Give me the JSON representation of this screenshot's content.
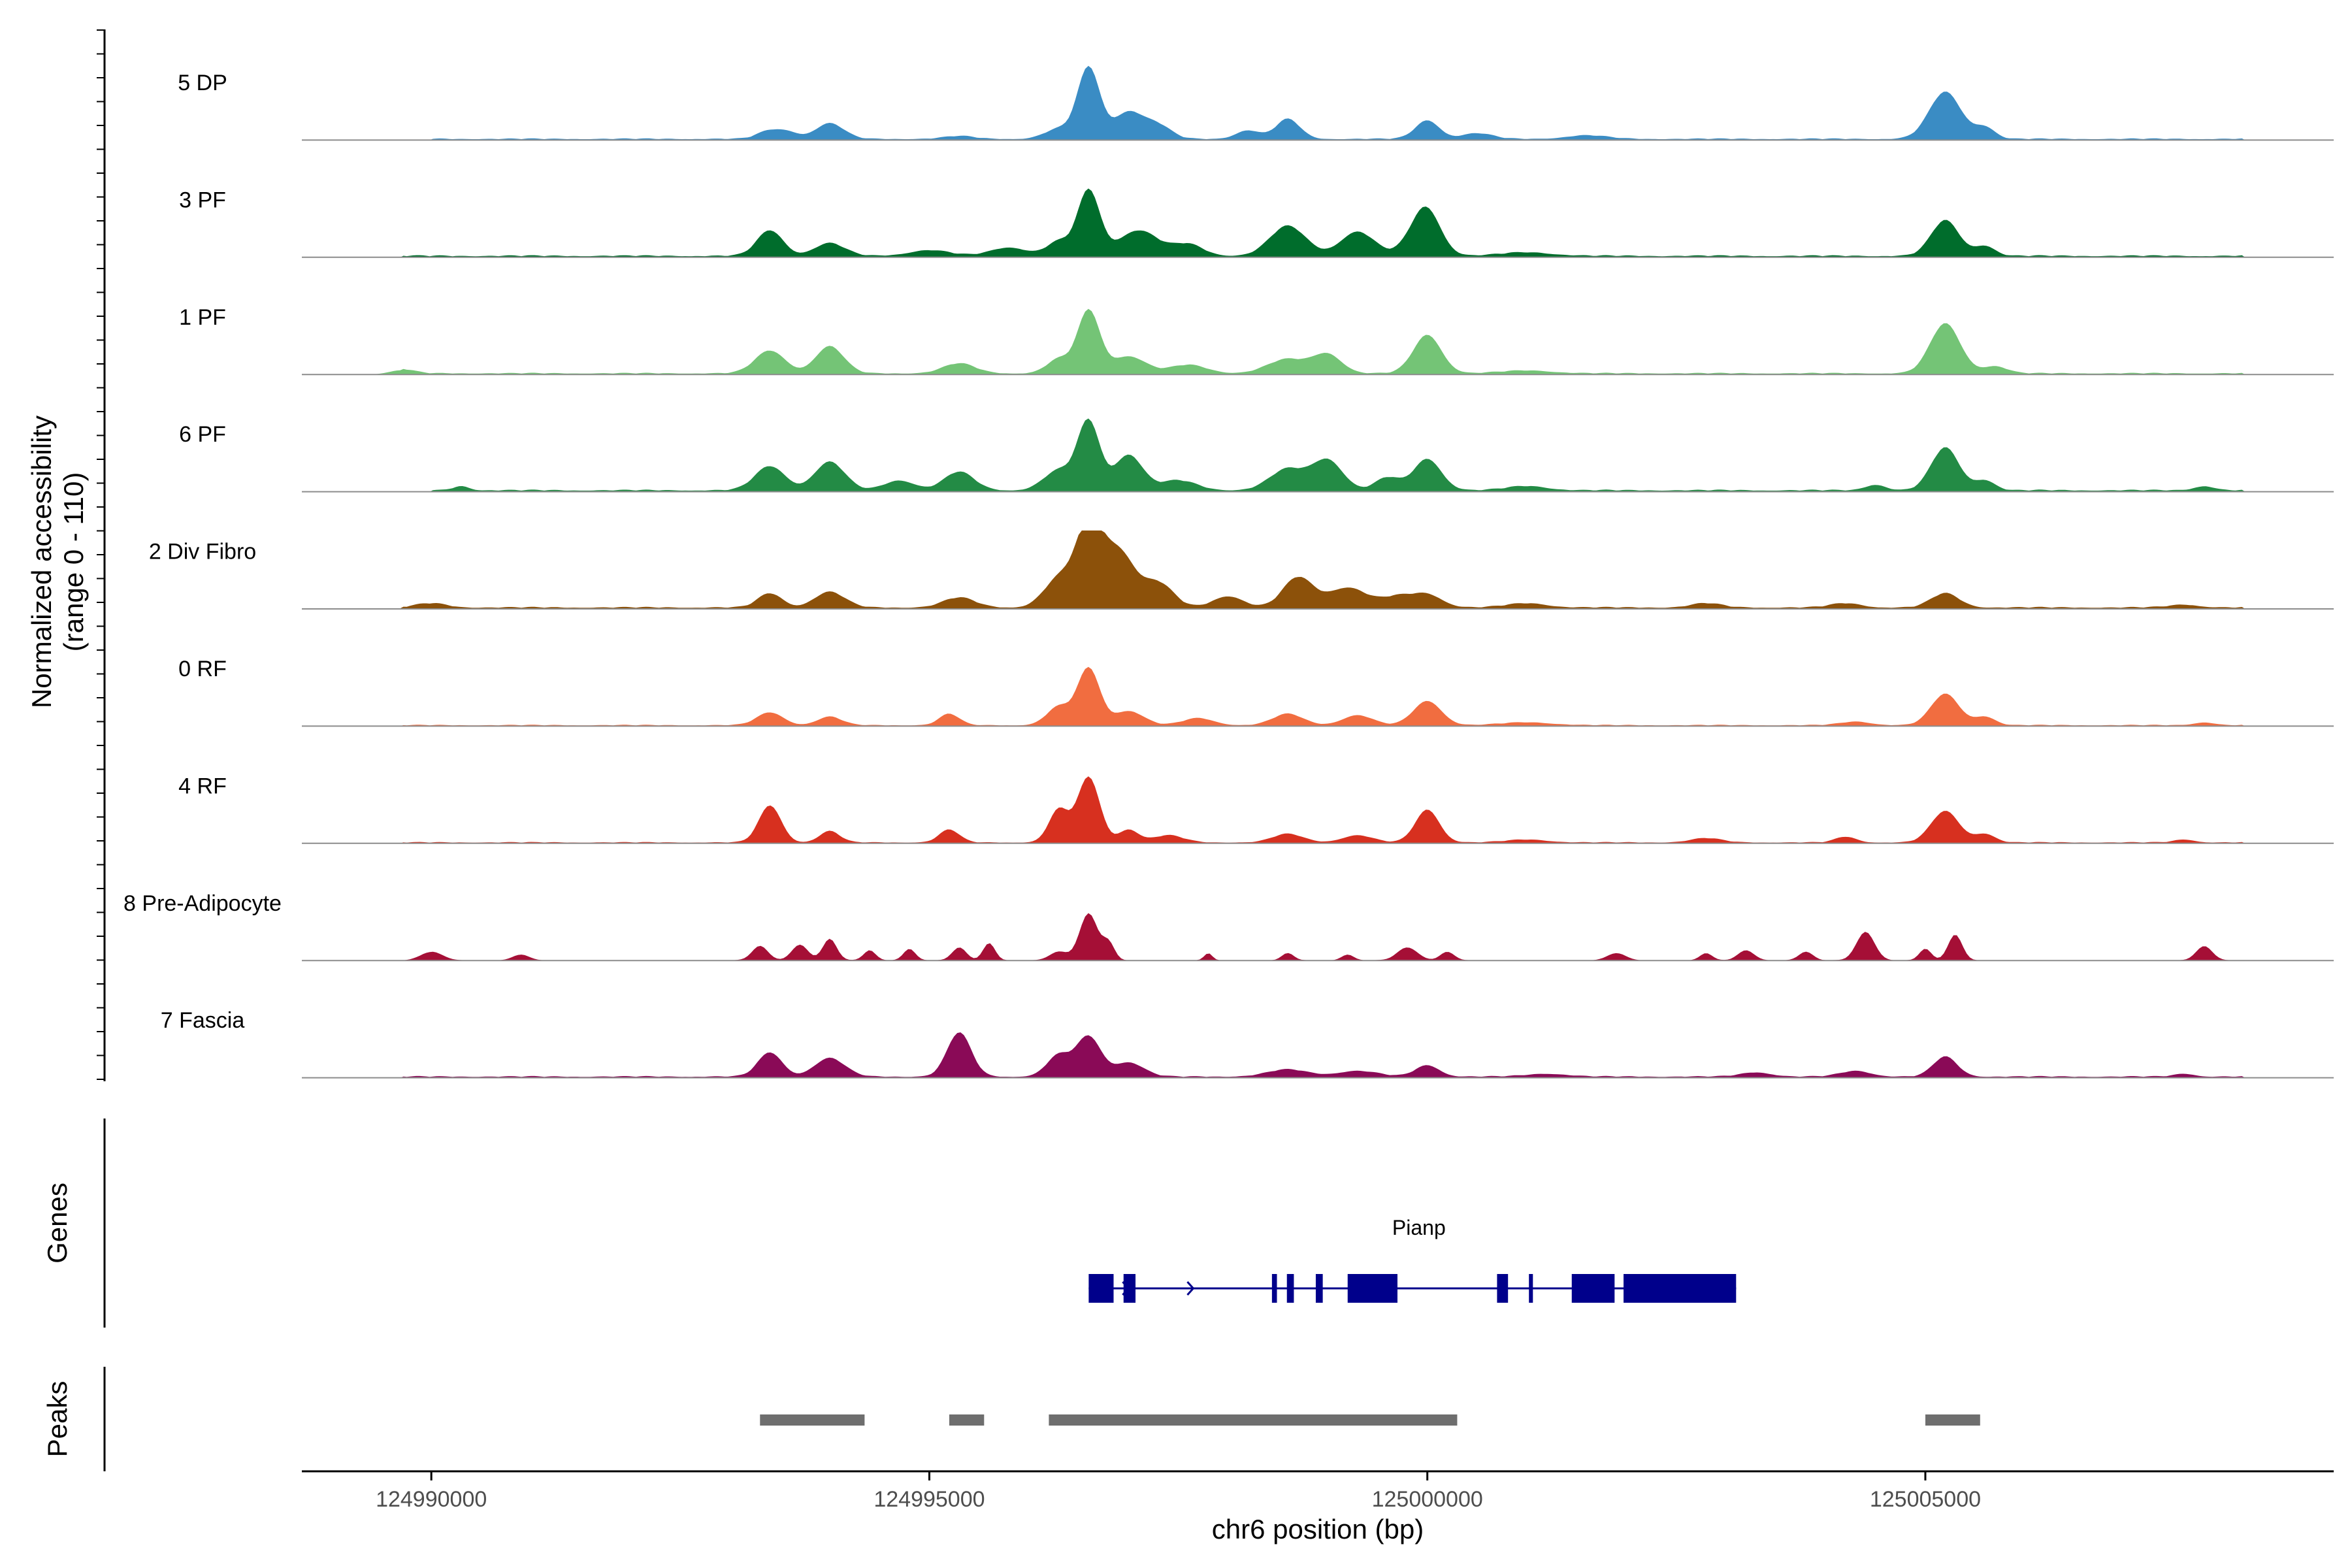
{
  "chart_data": {
    "type": "area",
    "title": "",
    "xlabel": "chr6 position (bp)",
    "ylabel": "Normalized accessibility\n(range 0 - 110)",
    "ylabel_line1": "Normalized accessibility",
    "ylabel_line2": "(range 0 - 110)",
    "xlim": [
      124988700,
      125009100
    ],
    "ylim": [
      0,
      110
    ],
    "x_ticks": [
      124990000,
      124995000,
      125000000,
      125005000
    ],
    "x_tick_labels": [
      "124990000",
      "124995000",
      "125000000",
      "125005000"
    ],
    "series": [
      {
        "name": "5 DP",
        "color": "#3A8CC4",
        "peaks": [
          [
            124993400,
            12,
            120
          ],
          [
            124993600,
            8,
            100
          ],
          [
            124994000,
            22,
            140
          ],
          [
            124995300,
            4,
            150
          ],
          [
            124996300,
            14,
            140
          ],
          [
            124996600,
            100,
            110
          ],
          [
            124997000,
            38,
            150
          ],
          [
            124997300,
            18,
            130
          ],
          [
            124998200,
            12,
            120
          ],
          [
            124998600,
            28,
            120
          ],
          [
            125000000,
            26,
            120
          ],
          [
            125000500,
            8,
            150
          ],
          [
            125001600,
            5,
            200
          ],
          [
            125005200,
            66,
            160
          ],
          [
            125005600,
            16,
            100
          ]
        ],
        "noise": [
          124990000,
          125008200,
          2.5
        ]
      },
      {
        "name": "3 PF",
        "color": "#006D2C",
        "peaks": [
          [
            124993400,
            36,
            130
          ],
          [
            124994000,
            18,
            150
          ],
          [
            124995000,
            8,
            200
          ],
          [
            124995800,
            12,
            180
          ],
          [
            124996300,
            20,
            120
          ],
          [
            124996600,
            92,
            110
          ],
          [
            124997100,
            36,
            200
          ],
          [
            124997600,
            16,
            150
          ],
          [
            124998600,
            42,
            180
          ],
          [
            124999300,
            34,
            170
          ],
          [
            124999900,
            18,
            150
          ],
          [
            125000000,
            54,
            140
          ],
          [
            125001000,
            5,
            250
          ],
          [
            125005200,
            50,
            140
          ],
          [
            125005600,
            14,
            100
          ]
        ],
        "noise": [
          124989700,
          125008200,
          3.0
        ]
      },
      {
        "name": "1 PF",
        "color": "#74C476",
        "peaks": [
          [
            124989700,
            6,
            120
          ],
          [
            124993400,
            32,
            150
          ],
          [
            124994000,
            38,
            140
          ],
          [
            124995300,
            14,
            160
          ],
          [
            124996300,
            20,
            120
          ],
          [
            124996600,
            88,
            110
          ],
          [
            124997000,
            24,
            170
          ],
          [
            124997600,
            12,
            180
          ],
          [
            124998600,
            20,
            200
          ],
          [
            124999000,
            26,
            140
          ],
          [
            125000000,
            54,
            140
          ],
          [
            125001000,
            4,
            250
          ],
          [
            125005200,
            70,
            150
          ],
          [
            125005700,
            10,
            120
          ]
        ],
        "noise": [
          124989700,
          125008200,
          2.5
        ]
      },
      {
        "name": "6 PF",
        "color": "#238B45",
        "peaks": [
          [
            124990300,
            6,
            80
          ],
          [
            124993400,
            34,
            150
          ],
          [
            124994000,
            40,
            150
          ],
          [
            124994700,
            14,
            150
          ],
          [
            124995300,
            26,
            150
          ],
          [
            124996300,
            28,
            150
          ],
          [
            124996600,
            96,
            110
          ],
          [
            124997000,
            50,
            140
          ],
          [
            124997500,
            14,
            180
          ],
          [
            124998600,
            30,
            180
          ],
          [
            124999000,
            42,
            150
          ],
          [
            124999600,
            18,
            120
          ],
          [
            125000000,
            44,
            140
          ],
          [
            125001000,
            6,
            200
          ],
          [
            125004500,
            8,
            100
          ],
          [
            125005200,
            60,
            140
          ],
          [
            125005600,
            14,
            100
          ],
          [
            125007800,
            6,
            100
          ]
        ],
        "noise": [
          124990000,
          125008200,
          3.0
        ]
      },
      {
        "name": "2 Div Fibro",
        "color": "#8C510A",
        "peaks": [
          [
            124990000,
            6,
            150
          ],
          [
            124993400,
            20,
            120
          ],
          [
            124994000,
            22,
            150
          ],
          [
            124995300,
            14,
            160
          ],
          [
            124996300,
            40,
            150
          ],
          [
            124996600,
            110,
            130
          ],
          [
            124996900,
            78,
            160
          ],
          [
            124997300,
            34,
            150
          ],
          [
            124998000,
            16,
            150
          ],
          [
            124998700,
            42,
            150
          ],
          [
            124999200,
            28,
            200
          ],
          [
            124999700,
            14,
            150
          ],
          [
            125000000,
            18,
            150
          ],
          [
            125001000,
            6,
            200
          ],
          [
            125002800,
            6,
            150
          ],
          [
            125004200,
            6,
            150
          ],
          [
            125005200,
            20,
            140
          ],
          [
            125007600,
            4,
            150
          ]
        ],
        "noise": [
          124989700,
          125008200,
          3.0
        ]
      },
      {
        "name": "0 RF",
        "color": "#F16D40",
        "peaks": [
          [
            124993400,
            18,
            130
          ],
          [
            124994000,
            12,
            120
          ],
          [
            124995200,
            16,
            100
          ],
          [
            124996300,
            26,
            120
          ],
          [
            124996600,
            80,
            110
          ],
          [
            124997000,
            20,
            150
          ],
          [
            124997700,
            10,
            150
          ],
          [
            124998600,
            16,
            150
          ],
          [
            124999300,
            14,
            150
          ],
          [
            125000000,
            34,
            140
          ],
          [
            125001000,
            4,
            250
          ],
          [
            125004300,
            5,
            150
          ],
          [
            125005200,
            44,
            140
          ],
          [
            125005600,
            12,
            100
          ],
          [
            125007800,
            4,
            100
          ]
        ],
        "noise": [
          124989700,
          125008200,
          2.0
        ]
      },
      {
        "name": "4 RF",
        "color": "#D7301F",
        "peaks": [
          [
            124993400,
            52,
            110
          ],
          [
            124994000,
            16,
            100
          ],
          [
            124995200,
            18,
            100
          ],
          [
            124996300,
            46,
            100
          ],
          [
            124996600,
            92,
            110
          ],
          [
            124997000,
            18,
            100
          ],
          [
            124997400,
            10,
            150
          ],
          [
            124998600,
            12,
            150
          ],
          [
            124999300,
            10,
            150
          ],
          [
            125000000,
            46,
            120
          ],
          [
            125001000,
            4,
            200
          ],
          [
            125002800,
            6,
            150
          ],
          [
            125004200,
            8,
            100
          ],
          [
            125005200,
            44,
            140
          ],
          [
            125005600,
            12,
            100
          ],
          [
            125007600,
            4,
            100
          ]
        ],
        "noise": [
          124989700,
          125008200,
          2.0
        ]
      },
      {
        "name": "8 Pre-Adipocyte",
        "color": "#A50F36",
        "peaks": [
          [
            124990000,
            12,
            110
          ],
          [
            124990900,
            8,
            80
          ],
          [
            124993300,
            20,
            80
          ],
          [
            124993700,
            22,
            80
          ],
          [
            124994000,
            30,
            70
          ],
          [
            124994400,
            14,
            60
          ],
          [
            124994800,
            16,
            60
          ],
          [
            124995300,
            18,
            70
          ],
          [
            124995600,
            24,
            60
          ],
          [
            124996300,
            12,
            90
          ],
          [
            124996600,
            66,
            90
          ],
          [
            124996800,
            24,
            60
          ],
          [
            124997800,
            10,
            40
          ],
          [
            124998600,
            10,
            60
          ],
          [
            124999200,
            8,
            60
          ],
          [
            124999800,
            18,
            100
          ],
          [
            125000200,
            12,
            70
          ],
          [
            125001900,
            10,
            90
          ],
          [
            125002800,
            10,
            60
          ],
          [
            125003200,
            14,
            80
          ],
          [
            125003800,
            12,
            70
          ],
          [
            125004400,
            40,
            90
          ],
          [
            125005000,
            16,
            60
          ],
          [
            125005300,
            36,
            70
          ],
          [
            125007800,
            20,
            80
          ]
        ],
        "noise": [
          124990000,
          125008200,
          0.6
        ]
      },
      {
        "name": "7 Fascia",
        "color": "#8A0A57",
        "peaks": [
          [
            124993400,
            34,
            120
          ],
          [
            124994000,
            26,
            150
          ],
          [
            124995300,
            62,
            120
          ],
          [
            124996300,
            30,
            120
          ],
          [
            124996600,
            56,
            120
          ],
          [
            124997000,
            20,
            150
          ],
          [
            124998600,
            10,
            200
          ],
          [
            124999300,
            8,
            200
          ],
          [
            125000000,
            16,
            120
          ],
          [
            125001200,
            4,
            200
          ],
          [
            125003300,
            6,
            150
          ],
          [
            125004300,
            8,
            150
          ],
          [
            125005200,
            28,
            120
          ],
          [
            125007600,
            4,
            100
          ]
        ],
        "noise": [
          124989700,
          125008200,
          2.5
        ]
      }
    ],
    "genes": [
      {
        "name": "Pianp",
        "color": "#00008B",
        "start": 124996600,
        "end": 125003100,
        "strand": "+",
        "exons": [
          [
            124996600,
            124996850
          ],
          [
            124996950,
            124997070
          ],
          [
            124998440,
            124998490
          ],
          [
            124998590,
            124998660
          ],
          [
            124998880,
            124998950
          ],
          [
            124999200,
            124999700
          ],
          [
            125000700,
            125000810
          ],
          [
            125001020,
            125001060
          ],
          [
            125001450,
            125001880
          ],
          [
            125001970,
            125003100
          ]
        ]
      }
    ],
    "peaks_regions": [
      [
        124993300,
        124994350
      ],
      [
        124995200,
        124995550
      ],
      [
        124996200,
        125000300
      ],
      [
        125005000,
        125005550
      ]
    ],
    "panel_titles": [
      "Genes",
      "Peaks"
    ]
  }
}
